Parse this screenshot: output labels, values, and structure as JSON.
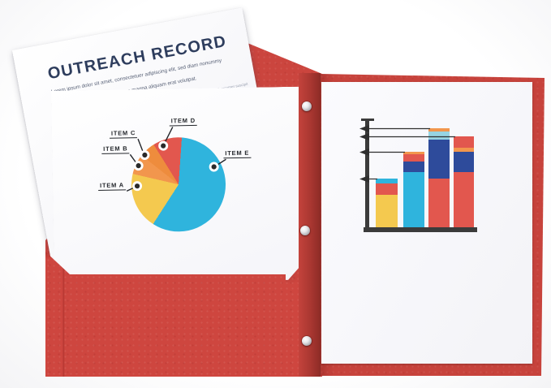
{
  "scene": {
    "description": "Open red two-pocket paper folder containing printed report pages"
  },
  "palette": {
    "red": "#e2574e",
    "blue": "#2fb4dd",
    "navy": "#2e4b9b",
    "light_blue": "#96d4e2",
    "orange": "#f2964d",
    "dark_orange": "#ee8c3d",
    "yellow": "#f4c94f",
    "folder_red": "#cb453e",
    "axis_dark": "#3b3b3b",
    "title_navy": "#2e3d5d"
  },
  "document": {
    "title": "OUTREACH RECORD",
    "body_lines": [
      "Lorem ipsum dolor sit amet, consectetuer adipiscing elit, sed diam nonummy nibh",
      "euismod tincidunt ut laoreet dolore magna aliquam erat volutpat."
    ],
    "fine_print_lines": [
      "quis nostrud exerci tation ullamcorper suscipit",
      "lobortis nisl ut aliquip ex ea"
    ]
  },
  "chart_data": [
    {
      "type": "pie",
      "title": "",
      "start_angle_deg": 5,
      "legend_position": "callout-labels",
      "slices": [
        {
          "label": "ITEM E",
          "color": "blue",
          "pct": 58
        },
        {
          "label": "ITEM A",
          "color": "yellow",
          "pct": 19.5
        },
        {
          "label": "ITEM B",
          "color": "orange",
          "pct": 7
        },
        {
          "label": "ITEM C",
          "color": "dark_orange",
          "pct": 5.5
        },
        {
          "label": "ITEM D",
          "color": "red",
          "pct": 10
        }
      ]
    },
    {
      "type": "bar",
      "stacked": true,
      "title": "",
      "xlabel": "",
      "ylabel": "",
      "categories": [
        "",
        "",
        "",
        ""
      ],
      "axis_ticks_visible": false,
      "ylim": [
        0,
        132
      ],
      "annotation": "left-pointing arrow on y-axis marks the top of each stacked bar",
      "bars": [
        {
          "total": 60,
          "segments": [
            {
              "color": "yellow",
              "value": 40
            },
            {
              "color": "red",
              "value": 14
            },
            {
              "color": "blue",
              "value": 6
            }
          ]
        },
        {
          "total": 93,
          "segments": [
            {
              "color": "blue",
              "value": 68
            },
            {
              "color": "navy",
              "value": 13
            },
            {
              "color": "red",
              "value": 9
            },
            {
              "color": "orange",
              "value": 3
            }
          ]
        },
        {
          "total": 122,
          "segments": [
            {
              "color": "red",
              "value": 60
            },
            {
              "color": "navy",
              "value": 48
            },
            {
              "color": "light_blue",
              "value": 10
            },
            {
              "color": "orange",
              "value": 4
            }
          ]
        },
        {
          "total": 112,
          "segments": [
            {
              "color": "red",
              "value": 68
            },
            {
              "color": "navy",
              "value": 25
            },
            {
              "color": "orange",
              "value": 5
            },
            {
              "color": "red",
              "value": 14
            }
          ]
        }
      ]
    }
  ]
}
